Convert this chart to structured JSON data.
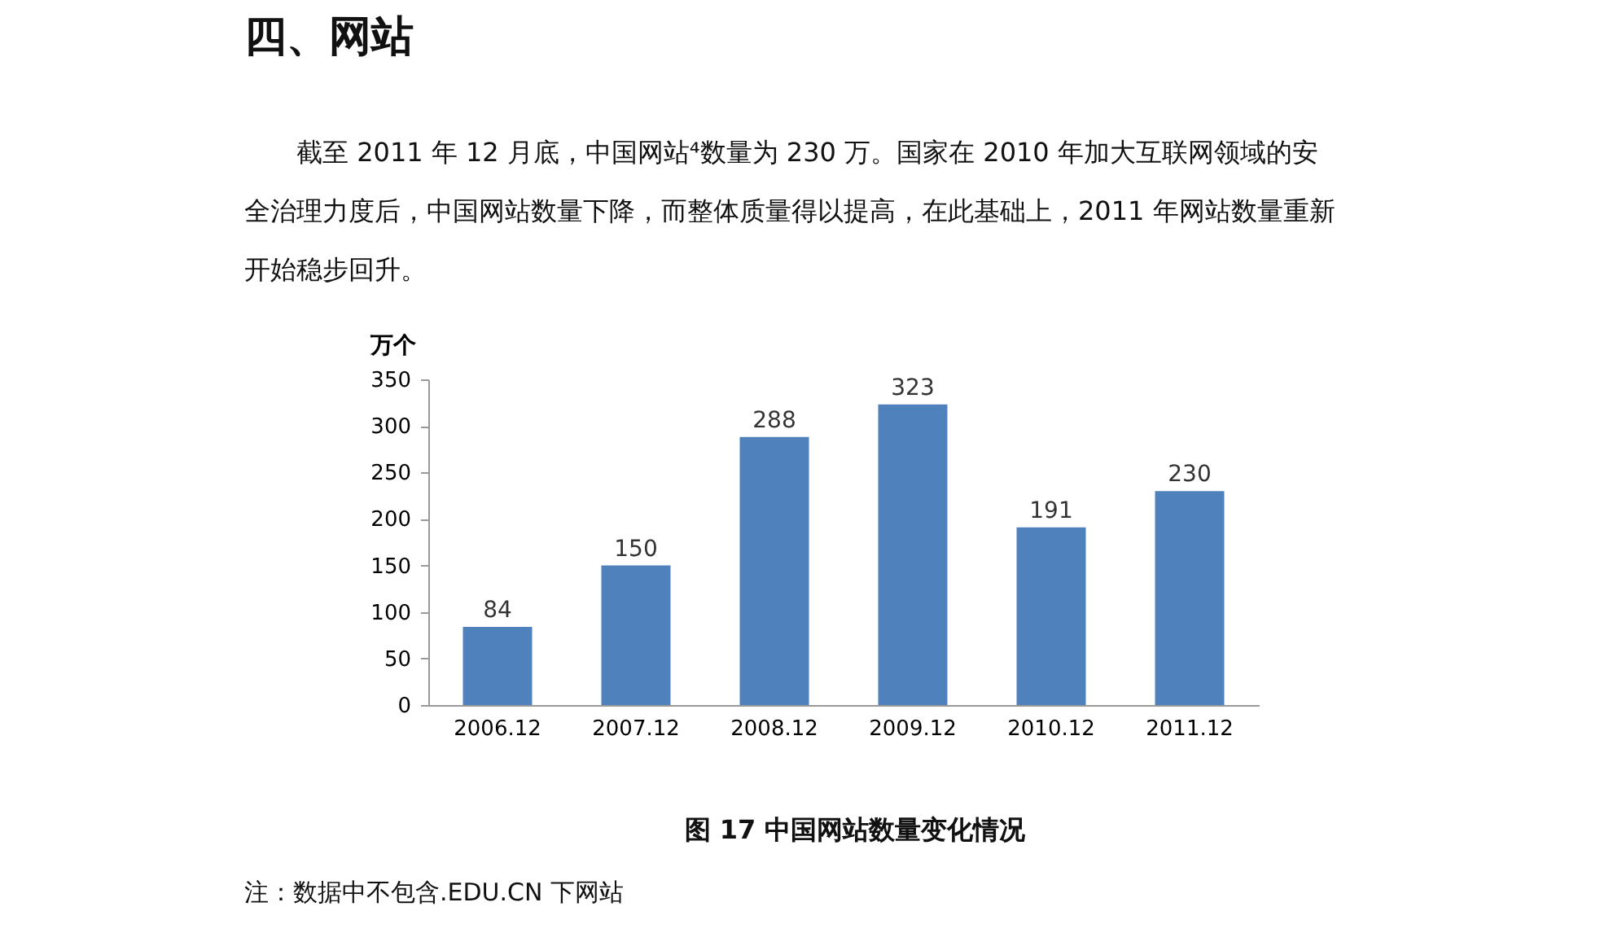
{
  "chart_data": {
    "type": "bar",
    "title": "四、网站",
    "subtitle": "截至 2011 年 12 月底，中国网站⁴数量为 230 万。国家在 2010 年加大互联网领域的安全治理力度后，中国网站数量下降，而整体质量得以提高，在此基础上，2011 年网站数量重新开始稳步回升。",
    "ylabel": "万个",
    "categories": [
      "2006.12",
      "2007.12",
      "2008.12",
      "2009.12",
      "2010.12",
      "2011.12"
    ],
    "values": [
      84,
      150,
      288,
      323,
      191,
      230
    ],
    "color": "#4f81bd",
    "ylim": [
      0,
      350
    ],
    "yticks": [
      0,
      50,
      100,
      150,
      200,
      250,
      300,
      350
    ],
    "grid": false,
    "data_labels": true,
    "annotations": [
      "图 17   中国网站数量变化情况",
      "注：数据中不包含.EDU.CN 下网站"
    ]
  }
}
